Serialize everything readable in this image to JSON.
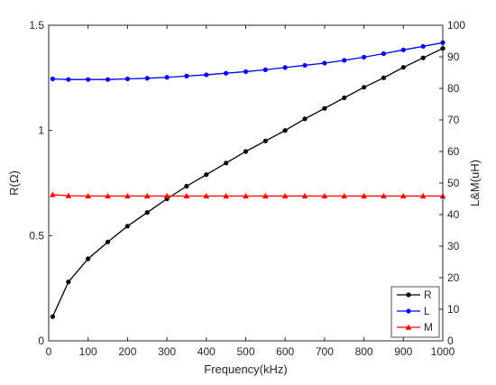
{
  "chart_data": {
    "type": "line",
    "xlabel": "Frequency(kHz)",
    "ylabel_left": "R(Ω)",
    "ylabel_right": "L&M(uH)",
    "xlim": [
      0,
      1000
    ],
    "ylim_left": [
      0,
      1.5
    ],
    "ylim_right": [
      0,
      100
    ],
    "x_ticks": [
      "0",
      "100",
      "200",
      "300",
      "400",
      "500",
      "600",
      "700",
      "800",
      "900",
      "1000"
    ],
    "y_left_ticks": [
      "0",
      "0.5",
      "1",
      "1.5"
    ],
    "y_right_ticks": [
      "0",
      "10",
      "20",
      "30",
      "40",
      "50",
      "60",
      "70",
      "80",
      "90",
      "100"
    ],
    "x": [
      10,
      50,
      100,
      150,
      200,
      250,
      300,
      350,
      400,
      450,
      500,
      550,
      600,
      650,
      700,
      750,
      800,
      850,
      900,
      950,
      1000
    ],
    "legend_position": "bottom-right",
    "series": [
      {
        "name": "R",
        "axis": "left",
        "color": "#000000",
        "marker": "circle",
        "values": [
          0.115,
          0.28,
          0.39,
          0.47,
          0.545,
          0.61,
          0.675,
          0.735,
          0.79,
          0.845,
          0.9,
          0.95,
          1.0,
          1.055,
          1.105,
          1.155,
          1.205,
          1.25,
          1.3,
          1.345,
          1.39
        ]
      },
      {
        "name": "L",
        "axis": "right",
        "color": "#0000ff",
        "marker": "circle",
        "values": [
          83.0,
          82.8,
          82.8,
          82.8,
          83.0,
          83.2,
          83.5,
          83.9,
          84.3,
          84.8,
          85.3,
          85.9,
          86.6,
          87.3,
          88.0,
          88.9,
          89.9,
          91.0,
          92.2,
          93.3,
          94.5
        ]
      },
      {
        "name": "M",
        "axis": "right",
        "color": "#ff0000",
        "marker": "triangle",
        "values": [
          46.3,
          46.0,
          45.9,
          45.9,
          45.9,
          45.9,
          45.9,
          45.9,
          45.9,
          45.9,
          45.9,
          45.9,
          45.9,
          45.9,
          45.9,
          45.9,
          45.9,
          45.9,
          45.9,
          45.9,
          45.9
        ]
      }
    ]
  }
}
